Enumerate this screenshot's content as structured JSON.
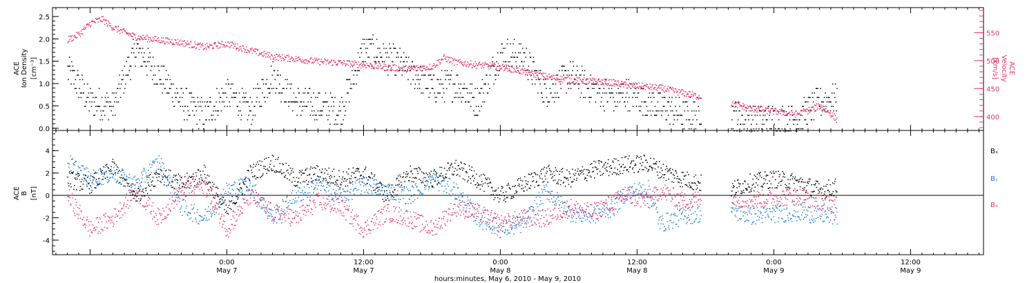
{
  "chart_data": [
    {
      "type": "scatter",
      "panel": "ion-density-velocity",
      "ylabel_lines": [
        "ACE",
        "Ion Density"
      ],
      "yunit": "[cm⁻³]",
      "ylim": [
        -0.05,
        2.7
      ],
      "yticks": [
        "0.0",
        "0.5",
        "1.0",
        "1.5",
        "2.0",
        "2.5"
      ],
      "y2label_lines": [
        "ACE",
        "Velocity"
      ],
      "y2unit": "[km/s]",
      "y2lim": [
        375,
        595
      ],
      "y2ticks": [
        "400",
        "450",
        "500",
        "550"
      ],
      "series": [
        {
          "color": "#000000",
          "axis": "left",
          "x_hours": [
            -14,
            -12,
            -10,
            -8,
            -6,
            -4,
            -2,
            0,
            2,
            4,
            6,
            8,
            10,
            12,
            14,
            16,
            18,
            20,
            22,
            24,
            26,
            28,
            30,
            32,
            34,
            35,
            38,
            40,
            42,
            44,
            46,
            48,
            50,
            52,
            53.5
          ],
          "values": [
            1.3,
            0.6,
            0.5,
            1.8,
            1.2,
            0.6,
            0.3,
            0.8,
            0.4,
            1.2,
            0.6,
            0.5,
            0.4,
            1.8,
            1.6,
            1.3,
            0.9,
            1.0,
            0.6,
            1.7,
            1.6,
            0.8,
            1.2,
            0.9,
            0.7,
            0.8,
            0.5,
            0.3,
            0.4,
            0.3,
            0.2,
            0.2,
            0.2,
            0.6,
            0.7
          ]
        },
        {
          "color": "#e8336a",
          "axis": "right",
          "x_hours": [
            -14,
            -13,
            -12,
            -11,
            -10,
            -8,
            -6,
            -4,
            -2,
            0,
            2,
            4,
            6,
            8,
            10,
            12,
            14,
            16,
            18,
            19,
            20,
            22,
            24,
            26,
            28,
            30,
            32,
            34,
            35,
            38,
            40,
            42,
            44,
            46,
            48,
            50,
            51,
            52,
            53,
            53.5
          ],
          "values": [
            538,
            548,
            568,
            575,
            560,
            543,
            538,
            533,
            525,
            531,
            519,
            508,
            504,
            499,
            497,
            493,
            489,
            486,
            490,
            506,
            498,
            493,
            490,
            481,
            472,
            466,
            464,
            461,
            457,
            452,
            443,
            434,
            425,
            415,
            410,
            405,
            412,
            420,
            405,
            395
          ]
        }
      ]
    },
    {
      "type": "scatter",
      "panel": "magnetic-field",
      "ylabel_lines": [
        "ACE",
        "B"
      ],
      "yunit": "[nT]",
      "ylim": [
        -5.3,
        5.8
      ],
      "yticks": [
        "-4",
        "-2",
        "0",
        "2",
        "4"
      ],
      "legend": [
        "Bₓ",
        "Bᵧ",
        "Bₔ"
      ],
      "series": [
        {
          "name": "Bx",
          "color": "#000000",
          "x_hours": [
            -14,
            -12,
            -10,
            -8,
            -6,
            -4,
            -2,
            0,
            2,
            4,
            6,
            8,
            10,
            12,
            14,
            16,
            18,
            20,
            22,
            24,
            26,
            28,
            30,
            32,
            34,
            35,
            37,
            38,
            40,
            42,
            44,
            46,
            48,
            50,
            52,
            53.5
          ],
          "values": [
            1.5,
            1.0,
            2.5,
            0.0,
            2.0,
            1.0,
            2.0,
            -1.5,
            2.0,
            3.0,
            1.5,
            2.0,
            1.5,
            2.0,
            0.0,
            2.0,
            1.5,
            2.5,
            1.5,
            0.0,
            1.0,
            2.0,
            1.5,
            2.3,
            2.6,
            2.8,
            2.9,
            2.3,
            1.5,
            1.0,
            0.5,
            1.2,
            1.5,
            1.2,
            0.5,
            0.8
          ]
        },
        {
          "name": "By",
          "color": "#1e7fd6",
          "x_hours": [
            -14,
            -12,
            -10,
            -8,
            -6,
            -4,
            -2,
            0,
            2,
            4,
            6,
            8,
            10,
            12,
            14,
            16,
            18,
            20,
            22,
            24,
            26,
            28,
            30,
            32,
            34,
            35,
            37,
            38,
            40,
            42,
            44,
            46,
            48,
            50,
            52,
            53.5
          ],
          "values": [
            3.0,
            1.5,
            2.0,
            1.0,
            3.0,
            -1.0,
            -2.0,
            0.5,
            1.0,
            -2.0,
            0.0,
            1.0,
            0.0,
            1.0,
            0.5,
            0.0,
            1.5,
            0.5,
            -2.0,
            -3.0,
            -2.5,
            0.5,
            -1.5,
            -1.8,
            -1.0,
            0.3,
            0.6,
            -2.5,
            -1.8,
            -1.5,
            -1.3,
            -1.8,
            -1.6,
            -1.5,
            -1.7,
            -1.8
          ]
        },
        {
          "name": "Bz",
          "color": "#e8336a",
          "x_hours": [
            -14,
            -12,
            -10,
            -8,
            -6,
            -4,
            -2,
            0,
            2,
            4,
            6,
            8,
            10,
            12,
            14,
            16,
            18,
            20,
            22,
            24,
            26,
            28,
            30,
            32,
            34,
            35,
            37,
            38,
            40,
            42,
            44,
            46,
            48,
            50,
            52,
            53.5
          ],
          "values": [
            0.0,
            -3.0,
            -2.0,
            0.5,
            -2.0,
            0.5,
            1.0,
            -3.0,
            0.0,
            -1.5,
            -2.0,
            -0.5,
            -1.0,
            -3.0,
            -1.5,
            -2.0,
            -3.0,
            -1.0,
            -1.5,
            -2.5,
            -2.0,
            -2.0,
            -1.0,
            -1.5,
            -0.5,
            0.0,
            -0.5,
            0.5,
            -0.5,
            -0.2,
            -0.3,
            -0.3,
            -0.2,
            0.0,
            -0.5,
            -0.8
          ]
        }
      ]
    }
  ],
  "x_axis": {
    "xlim_hours": [
      -15.3,
      66.4
    ],
    "ticks": [
      {
        "hour": 0,
        "time": "0:00",
        "date": "May 7"
      },
      {
        "hour": 12,
        "time": "12:00",
        "date": "May 7"
      },
      {
        "hour": 24,
        "time": "0:00",
        "date": "May 8"
      },
      {
        "hour": 36,
        "time": "12:00",
        "date": "May 8"
      },
      {
        "hour": 48,
        "time": "0:00",
        "date": "May 9"
      },
      {
        "hour": 60,
        "time": "12:00",
        "date": "May 9"
      }
    ],
    "xlabel": "hours:minutes, May  6, 2010 - May  9, 2010"
  }
}
